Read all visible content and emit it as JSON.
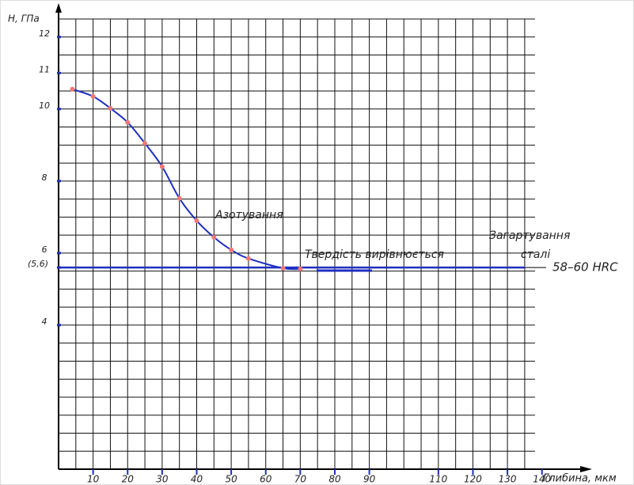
{
  "chart_data": {
    "type": "line",
    "y_label": "H, ГПа",
    "x_label": "Глибина, мкм",
    "x": [
      4,
      10,
      15,
      20,
      25,
      30,
      35,
      40,
      45,
      50,
      55,
      65,
      70
    ],
    "series": [
      {
        "color": "#1f2fbf",
        "values": [
          10.55,
          10.35,
          10.02,
          9.63,
          9.05,
          8.4,
          7.52,
          6.9,
          6.44,
          6.09,
          5.85,
          5.58,
          5.56
        ]
      }
    ],
    "point_color": "#f07878",
    "xlim": [
      0,
      138
    ],
    "ylim": [
      0,
      12.5
    ],
    "xticks": [
      10,
      20,
      30,
      40,
      50,
      60,
      70,
      80,
      90,
      110,
      120,
      130,
      140
    ],
    "yticks": [
      4,
      {
        "value": 5.6,
        "label": "(5,6)"
      },
      6,
      8,
      10,
      11,
      12
    ],
    "grid": true,
    "reference_line": {
      "value": 5.6,
      "text": "58–60 HRC",
      "color": "#1f2fbf"
    },
    "annotations": [
      "Азотування",
      "Твердість вирівнюється",
      "Загартування",
      "сталі"
    ]
  }
}
